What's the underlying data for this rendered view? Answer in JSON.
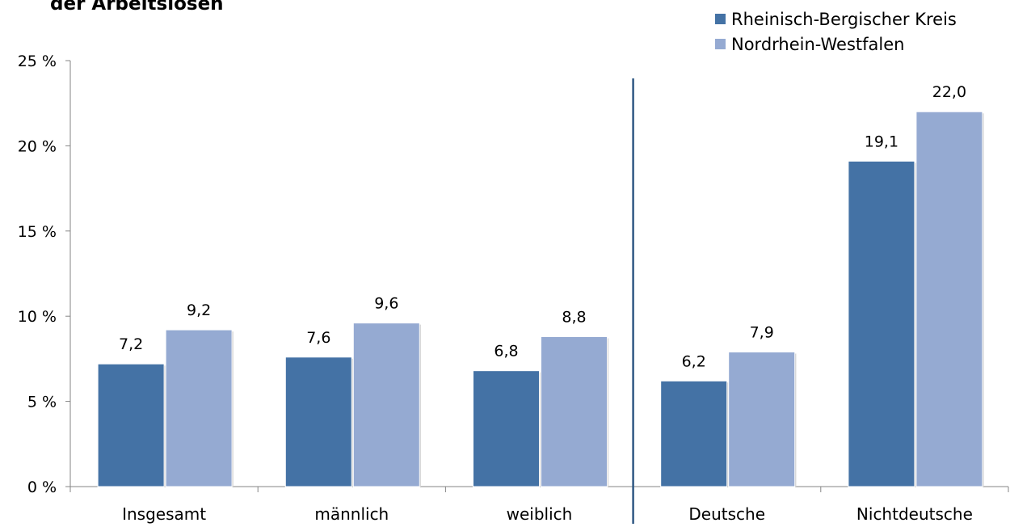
{
  "chart_data": {
    "type": "bar",
    "title": "der Arbeitslosen",
    "categories": [
      "Insgesamt",
      "männlich",
      "weiblich",
      "Deutsche",
      "Nichtdeutsche"
    ],
    "series": [
      {
        "name": "Rheinisch-Bergischer Kreis",
        "values": [
          7.2,
          7.6,
          6.8,
          6.2,
          19.1
        ],
        "labels": [
          "7,2",
          "7,6",
          "6,8",
          "6,2",
          "19,1"
        ]
      },
      {
        "name": "Nordrhein-Westfalen",
        "values": [
          9.2,
          9.6,
          8.8,
          7.9,
          22.0
        ],
        "labels": [
          "9,2",
          "9,6",
          "8,8",
          "7,9",
          "22,0"
        ]
      }
    ],
    "ylim": [
      0,
      25
    ],
    "yticks": [
      {
        "value": 0,
        "label": "0 %"
      },
      {
        "value": 5,
        "label": "5 %"
      },
      {
        "value": 10,
        "label": "10 %"
      },
      {
        "value": 15,
        "label": "15 %"
      },
      {
        "value": 20,
        "label": "20 %"
      },
      {
        "value": 25,
        "label": "25 %"
      }
    ],
    "xlabel": "",
    "ylabel": "",
    "grid": false,
    "legend_position": "top-right",
    "separator_after_category": "weiblich",
    "colors": {
      "series1": "#4472A5",
      "series2": "#95AAD2",
      "separator": "#2F5883",
      "axis": "#868686",
      "text": "#000000"
    }
  }
}
